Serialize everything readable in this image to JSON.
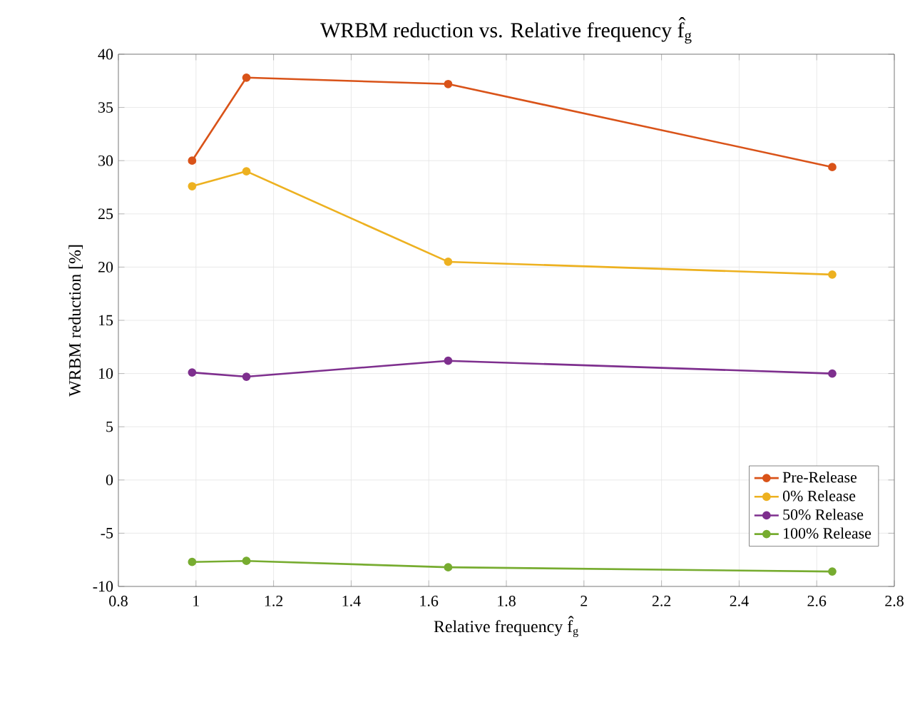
{
  "chart_data": {
    "type": "line",
    "title": "WRBM reduction vs. Relative frequency f̂$_{g}$",
    "xlabel": "Relative frequency f̂$_{g}$",
    "ylabel": "WRBM reduction [%]",
    "x": [
      0.99,
      1.13,
      1.65,
      2.64
    ],
    "series": [
      {
        "name": "Pre-Release",
        "color": "#d95319",
        "values": [
          30.0,
          37.8,
          37.2,
          29.4
        ]
      },
      {
        "name": "0% Release",
        "color": "#edb120",
        "values": [
          27.6,
          29.0,
          20.5,
          19.3
        ]
      },
      {
        "name": "50% Release",
        "color": "#7e2f8e",
        "values": [
          10.1,
          9.7,
          11.2,
          10.0
        ]
      },
      {
        "name": "100% Release",
        "color": "#77ac30",
        "values": [
          -7.7,
          -7.6,
          -8.2,
          -8.6
        ]
      }
    ],
    "xlim": [
      0.8,
      2.8
    ],
    "xticks": [
      0.8,
      1,
      1.2,
      1.4,
      1.6,
      1.8,
      2,
      2.2,
      2.4,
      2.6,
      2.8
    ],
    "ylim": [
      -10,
      40
    ],
    "yticks": [
      -10,
      -5,
      0,
      5,
      10,
      15,
      20,
      25,
      30,
      35,
      40
    ],
    "grid": true,
    "legend": "bottom right",
    "marker": "circle",
    "line_style": "solid"
  }
}
